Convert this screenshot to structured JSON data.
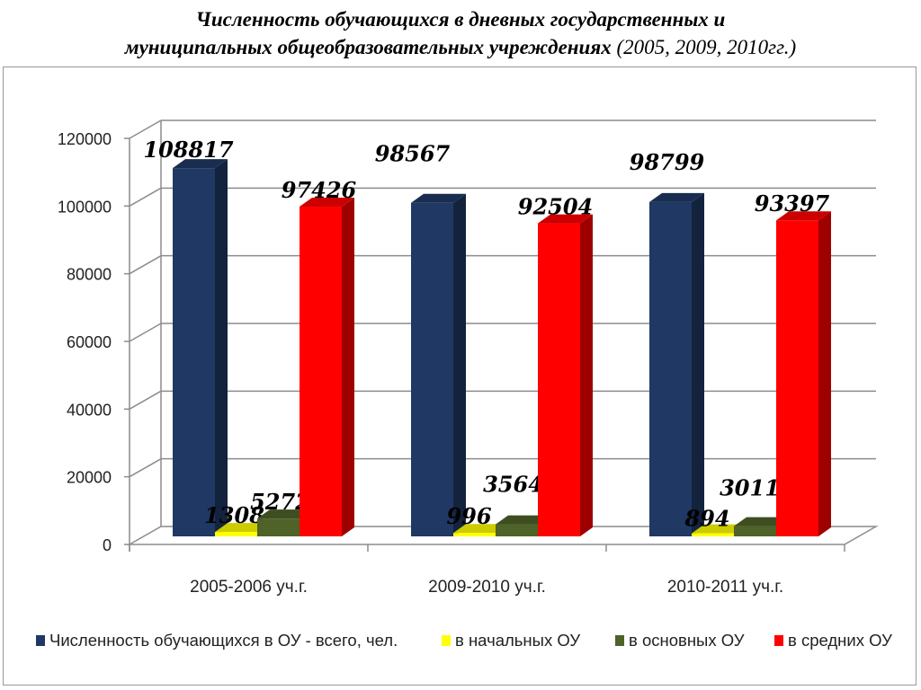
{
  "title": {
    "line1": "Численность обучающихся в дневных государственных и",
    "line2_main": "муниципальных общеобразовательных учреждениях",
    "line2_sub": "(2005, 2009, 2010гг.)"
  },
  "chart_data": {
    "type": "bar",
    "title": "Численность обучающихся в дневных государственных и муниципальных общеобразовательных учреждениях (2005, 2009, 2010гг.)",
    "categories": [
      "2005-2006 уч.г.",
      "2009-2010 уч.г.",
      "2010-2011 уч.г."
    ],
    "series": [
      {
        "name": "Численность обучающихся в ОУ - всего, чел.",
        "color": "#1f3864",
        "values": [
          108817,
          98567,
          98799
        ]
      },
      {
        "name": "в начальных ОУ",
        "color": "#ffff00",
        "values": [
          1308,
          996,
          894
        ]
      },
      {
        "name": "в основных ОУ",
        "color": "#4f6228",
        "values": [
          5272,
          3564,
          3011
        ]
      },
      {
        "name": "в средних ОУ",
        "color": "#ff0000",
        "values": [
          97426,
          92504,
          93397
        ]
      }
    ],
    "ylim": [
      0,
      120000
    ],
    "yticks": [
      "0",
      "20000",
      "40000",
      "60000",
      "80000",
      "100000",
      "120000"
    ],
    "grid": true,
    "legend": "bottom",
    "style": "3d-bar"
  }
}
